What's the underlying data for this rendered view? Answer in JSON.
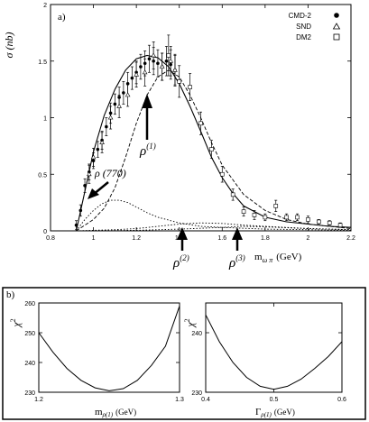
{
  "chart_data": [
    {
      "type": "scatter",
      "panel_label": "a)",
      "ylabel": "σ (nb)",
      "xlabel": "m",
      "xlabel_sub": "ω π",
      "xlabel_unit": "(GeV)",
      "xlim": [
        0.8,
        2.2
      ],
      "ylim": [
        0,
        2
      ],
      "xticks": [
        "0.8",
        "1",
        "1.2",
        "1.4",
        "1.6",
        "1.8",
        "2",
        "2.2"
      ],
      "yticks": [
        "0",
        "0.5",
        "1",
        "1.5",
        "2"
      ],
      "legend": [
        {
          "name": "CMD-2",
          "marker": "filled-circle"
        },
        {
          "name": "SND",
          "marker": "triangle"
        },
        {
          "name": "DM2",
          "marker": "square"
        }
      ],
      "legend_position": "top-right",
      "annotations": [
        {
          "text": "ρ",
          "sup": "(1)",
          "x": 1.35,
          "y": 1.05
        },
        {
          "text": "ρ (770)",
          "x": 1.12,
          "y": 0.45
        },
        {
          "text": "ρ",
          "sup": "(2)",
          "x": 1.43,
          "y": 0.0
        },
        {
          "text": "ρ",
          "sup": "(3)",
          "x": 1.68,
          "y": 0.0
        }
      ],
      "series": [
        {
          "name": "CMD-2",
          "x": [
            0.92,
            0.94,
            0.96,
            0.98,
            1.0,
            1.02,
            1.04,
            1.06,
            1.08,
            1.1,
            1.12,
            1.14,
            1.16,
            1.18,
            1.2,
            1.22,
            1.24,
            1.26,
            1.28,
            1.3,
            1.32,
            1.34,
            1.36,
            1.38
          ],
          "y": [
            0.05,
            0.18,
            0.4,
            0.52,
            0.62,
            0.72,
            0.8,
            0.92,
            1.04,
            1.12,
            1.18,
            1.22,
            1.3,
            1.35,
            1.4,
            1.45,
            1.48,
            1.52,
            1.5,
            1.48,
            1.45,
            1.5,
            1.47,
            1.42
          ],
          "err": [
            0.04,
            0.05,
            0.06,
            0.07,
            0.07,
            0.07,
            0.08,
            0.08,
            0.09,
            0.09,
            0.09,
            0.1,
            0.1,
            0.1,
            0.1,
            0.11,
            0.11,
            0.12,
            0.12,
            0.12,
            0.12,
            0.13,
            0.13,
            0.14
          ]
        },
        {
          "name": "SND",
          "x": [
            0.98,
            1.0,
            1.04,
            1.08,
            1.12,
            1.16,
            1.2,
            1.24,
            1.28,
            1.32,
            1.36,
            1.38
          ],
          "y": [
            0.5,
            0.65,
            0.78,
            1.0,
            1.1,
            1.2,
            1.38,
            1.4,
            1.55,
            1.45,
            1.5,
            1.42
          ],
          "err": [
            0.08,
            0.08,
            0.09,
            0.1,
            0.1,
            0.1,
            0.11,
            0.12,
            0.12,
            0.12,
            0.13,
            0.13
          ]
        },
        {
          "name": "DM2",
          "x": [
            1.35,
            1.4,
            1.45,
            1.5,
            1.55,
            1.6,
            1.65,
            1.7,
            1.75,
            1.8,
            1.85,
            1.9,
            1.95,
            2.0,
            2.05,
            2.1,
            2.15
          ],
          "y": [
            1.55,
            1.32,
            1.27,
            0.95,
            0.72,
            0.5,
            0.32,
            0.17,
            0.14,
            0.12,
            0.22,
            0.12,
            0.12,
            0.1,
            0.08,
            0.07,
            0.05
          ],
          "err": [
            0.18,
            0.14,
            0.12,
            0.1,
            0.08,
            0.07,
            0.05,
            0.04,
            0.04,
            0.03,
            0.05,
            0.03,
            0.03,
            0.03,
            0.02,
            0.02,
            0.02
          ]
        }
      ],
      "curves": [
        {
          "style": "solid",
          "x": [
            0.92,
            0.96,
            1.0,
            1.05,
            1.1,
            1.15,
            1.2,
            1.25,
            1.3,
            1.35,
            1.4,
            1.45,
            1.5,
            1.55,
            1.6,
            1.65,
            1.7,
            1.8,
            1.9,
            2.0,
            2.1,
            2.2
          ],
          "y": [
            0.0,
            0.35,
            0.7,
            1.02,
            1.25,
            1.42,
            1.52,
            1.55,
            1.53,
            1.45,
            1.3,
            1.1,
            0.88,
            0.65,
            0.47,
            0.33,
            0.22,
            0.12,
            0.08,
            0.06,
            0.04,
            0.03
          ]
        },
        {
          "style": "dashed",
          "x": [
            0.92,
            1.0,
            1.05,
            1.1,
            1.15,
            1.2,
            1.25,
            1.3,
            1.35,
            1.4,
            1.45,
            1.5,
            1.55,
            1.6,
            1.7,
            1.8,
            1.9,
            2.0,
            2.1,
            2.2
          ],
          "y": [
            0.0,
            0.1,
            0.2,
            0.38,
            0.65,
            0.95,
            1.2,
            1.36,
            1.42,
            1.36,
            1.2,
            1.0,
            0.78,
            0.58,
            0.32,
            0.18,
            0.1,
            0.06,
            0.04,
            0.02
          ]
        },
        {
          "style": "dotted",
          "x": [
            0.92,
            0.96,
            1.0,
            1.04,
            1.08,
            1.12,
            1.16,
            1.2,
            1.25,
            1.3,
            1.4,
            1.5,
            1.6,
            1.8,
            2.0,
            2.2
          ],
          "y": [
            0.0,
            0.1,
            0.18,
            0.24,
            0.27,
            0.27,
            0.25,
            0.21,
            0.16,
            0.12,
            0.07,
            0.04,
            0.03,
            0.015,
            0.01,
            0.005
          ]
        },
        {
          "style": "dotted",
          "x": [
            0.92,
            1.1,
            1.2,
            1.3,
            1.4,
            1.5,
            1.6,
            1.7,
            1.8,
            2.0,
            2.2
          ],
          "y": [
            0.0,
            0.01,
            0.02,
            0.04,
            0.06,
            0.07,
            0.065,
            0.05,
            0.04,
            0.02,
            0.01
          ]
        },
        {
          "style": "dotted",
          "x": [
            0.92,
            1.2,
            1.4,
            1.6,
            1.7,
            1.8,
            2.0,
            2.2
          ],
          "y": [
            0.0,
            0.005,
            0.015,
            0.03,
            0.04,
            0.035,
            0.02,
            0.01
          ]
        }
      ]
    },
    {
      "type": "line",
      "panel_label": "b)",
      "ylabel": "χ",
      "ylabel_sup": "2",
      "xlabel": "m",
      "xlabel_sub": "ρ(1)",
      "xlabel_unit": "(GeV)",
      "xlim": [
        1.2,
        1.3
      ],
      "ylim": [
        230,
        260
      ],
      "xticks": [
        "1.2",
        "1.3"
      ],
      "yticks": [
        "230",
        "240",
        "250",
        "260"
      ],
      "x": [
        1.2,
        1.21,
        1.22,
        1.23,
        1.24,
        1.25,
        1.26,
        1.27,
        1.28,
        1.29,
        1.3
      ],
      "y": [
        250,
        243.5,
        238,
        234,
        231.5,
        230.5,
        231.2,
        234,
        239,
        245.5,
        259
      ]
    },
    {
      "type": "line",
      "ylabel": "χ",
      "ylabel_sup": "2",
      "xlabel": "Γ",
      "xlabel_sub": "ρ(1)",
      "xlabel_unit": "(GeV)",
      "xlim": [
        0.4,
        0.6
      ],
      "ylim": [
        230,
        245
      ],
      "xticks": [
        "0.4",
        "0.5",
        "0.6"
      ],
      "yticks": [
        "230",
        "240"
      ],
      "x": [
        0.4,
        0.42,
        0.44,
        0.46,
        0.48,
        0.5,
        0.52,
        0.54,
        0.56,
        0.58,
        0.6
      ],
      "y": [
        243,
        238.5,
        235,
        232.5,
        231,
        230.5,
        231,
        232.2,
        234,
        236,
        238.5
      ]
    }
  ]
}
